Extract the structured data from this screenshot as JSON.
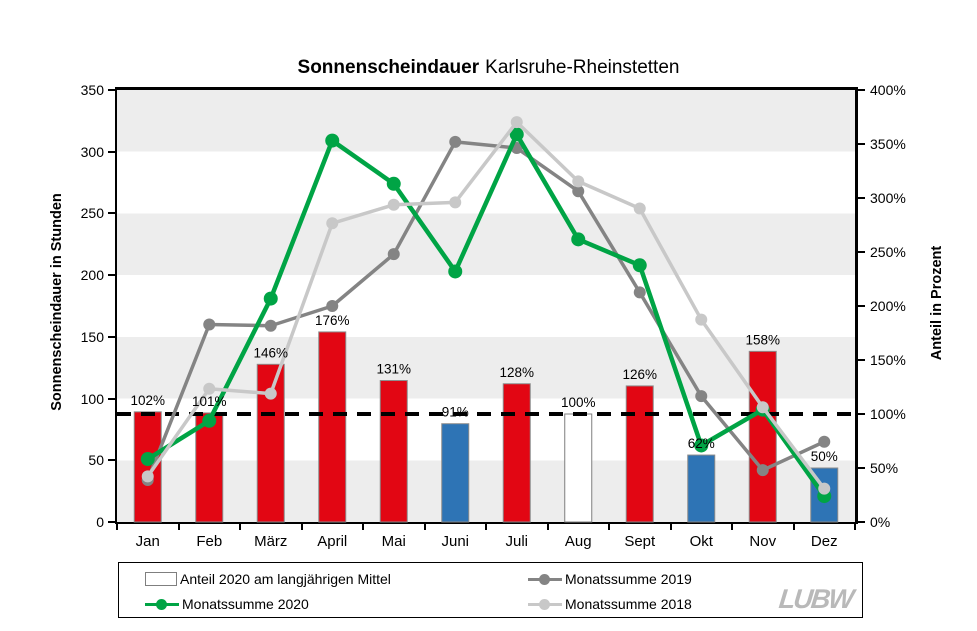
{
  "title": {
    "bold": "Sonnenscheindauer",
    "regular": "Karlsruhe-Rheinstetten"
  },
  "axes": {
    "left_title": "Sonnenscheindauer in Stunden",
    "right_title": "Anteil in Prozent",
    "left_ticks": [
      "0",
      "50",
      "100",
      "150",
      "200",
      "250",
      "300",
      "350"
    ],
    "right_ticks": [
      "0%",
      "50%",
      "100%",
      "150%",
      "200%",
      "250%",
      "300%",
      "350%",
      "400%"
    ]
  },
  "legend": {
    "items": [
      {
        "label": "Anteil 2020 am langjährigen Mittel",
        "swatch": "bar-outline",
        "color": "#ffffff"
      },
      {
        "label": "Monatssumme 2019",
        "swatch": "line",
        "color": "#848484"
      },
      {
        "label": "Monatssumme 2020",
        "swatch": "line",
        "color": "#00a445"
      },
      {
        "label": "Monatssumme 2018",
        "swatch": "line",
        "color": "#c8c8c8"
      }
    ]
  },
  "logo": {
    "text": "LUBW"
  },
  "colors": {
    "bar_red": "#e20613",
    "bar_blue": "#2e74b5",
    "bar_white": "#ffffff",
    "bar_stroke": "#8c8c8c",
    "line_2020": "#00a445",
    "line_2019": "#848484",
    "line_2018": "#c8c8c8",
    "reference_line": "#000000",
    "stripe": "#ededed"
  },
  "chart_data": {
    "type": "bar",
    "subtype": "combo bar+line, dual axis",
    "title": "Sonnenscheindauer Karlsruhe-Rheinstetten",
    "categories": [
      "Jan",
      "Feb",
      "März",
      "April",
      "Mai",
      "Juni",
      "Juli",
      "Aug",
      "Sept",
      "Okt",
      "Nov",
      "Dez"
    ],
    "left_axis": {
      "label": "Sonnenscheindauer in Stunden",
      "min": 0,
      "max": 350,
      "step": 50
    },
    "right_axis": {
      "label": "Anteil in Prozent",
      "min": 0,
      "max": 400,
      "step": 50,
      "unit": "%"
    },
    "bars": {
      "name": "Anteil 2020 am langjährigen Mittel",
      "axis": "right",
      "values_pct": [
        102,
        101,
        146,
        176,
        131,
        91,
        128,
        100,
        126,
        62,
        158,
        50
      ],
      "labels": [
        "102%",
        "101%",
        "146%",
        "176%",
        "131%",
        "91%",
        "128%",
        "100%",
        "126%",
        "62%",
        "158%",
        "50%"
      ],
      "fills": [
        "#e20613",
        "#e20613",
        "#e20613",
        "#e20613",
        "#e20613",
        "#2e74b5",
        "#e20613",
        "#ffffff",
        "#e20613",
        "#2e74b5",
        "#e20613",
        "#2e74b5"
      ]
    },
    "series": [
      {
        "name": "Monatssumme 2019",
        "axis": "left",
        "color": "#848484",
        "values": [
          34,
          160,
          159,
          175,
          217,
          308,
          303,
          268,
          186,
          102,
          42,
          65
        ]
      },
      {
        "name": "Monatssumme 2020",
        "axis": "left",
        "color": "#00a445",
        "values": [
          51,
          82,
          181,
          309,
          274,
          203,
          314,
          229,
          208,
          62,
          91,
          21
        ]
      },
      {
        "name": "Monatssumme 2018",
        "axis": "left",
        "color": "#c8c8c8",
        "values": [
          37,
          108,
          104,
          242,
          257,
          259,
          324,
          276,
          254,
          164,
          93,
          27
        ]
      }
    ],
    "reference_line": {
      "value_pct": 100,
      "axis": "right",
      "style": "dashed",
      "color": "#000000"
    },
    "gridlines": "alternating horizontal bands every 50 units"
  }
}
